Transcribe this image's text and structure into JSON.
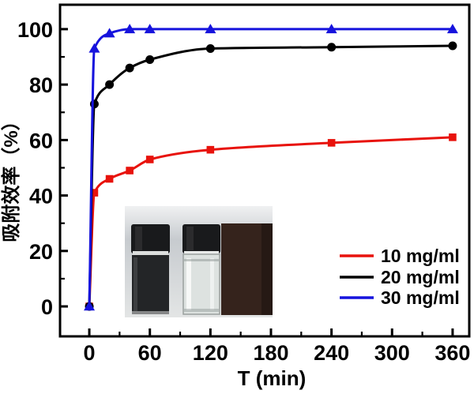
{
  "figure": {
    "background": "#ffffff",
    "axis_color": "#000000",
    "text_color": "#000000"
  },
  "chart_data": {
    "type": "line",
    "title": "",
    "xlabel": "T (min)",
    "ylabel": "吸附效率（%）",
    "xlim": [
      -29,
      376.5
    ],
    "ylim": [
      -10.8,
      108.8
    ],
    "x_major_ticks": [
      0,
      60,
      120,
      180,
      240,
      300,
      360
    ],
    "x_minor_ticks": [
      30,
      90,
      150,
      210,
      270,
      330
    ],
    "y_major_ticks": [
      0,
      20,
      40,
      60,
      80,
      100
    ],
    "y_minor_ticks": [
      10,
      30,
      50,
      70,
      90
    ],
    "grid": false,
    "legend_position": "lower-right",
    "x": [
      0,
      5,
      20,
      40,
      60,
      120,
      240,
      360
    ],
    "series": [
      {
        "name": "10 mg/ml",
        "color": "#e8120c",
        "marker": "square",
        "values": [
          0,
          41,
          46,
          49,
          53,
          56.5,
          59,
          61
        ]
      },
      {
        "name": "20 mg/ml",
        "color": "#000000",
        "marker": "circle",
        "values": [
          0,
          73,
          80,
          86,
          89,
          93,
          93.5,
          94
        ]
      },
      {
        "name": "30 mg/ml",
        "color": "#1613dd",
        "marker": "triangle",
        "values": [
          0,
          93,
          98.5,
          100,
          100,
          100,
          100,
          100
        ]
      }
    ]
  },
  "inset": {
    "description": "Photo of two glass vials: left with dark black dispersion, right with clear solution, dark sponge block at right edge",
    "photo_bg_top": "#f0f1f2",
    "photo_bg_mid": "#c7cbcf",
    "photo_bg_bottom": "#e3e5e5",
    "vial_cap": "#191a1c",
    "dark_liquid": "#232527",
    "clear_liquid": "#dde2e0",
    "sponge_block": "#35231c"
  }
}
